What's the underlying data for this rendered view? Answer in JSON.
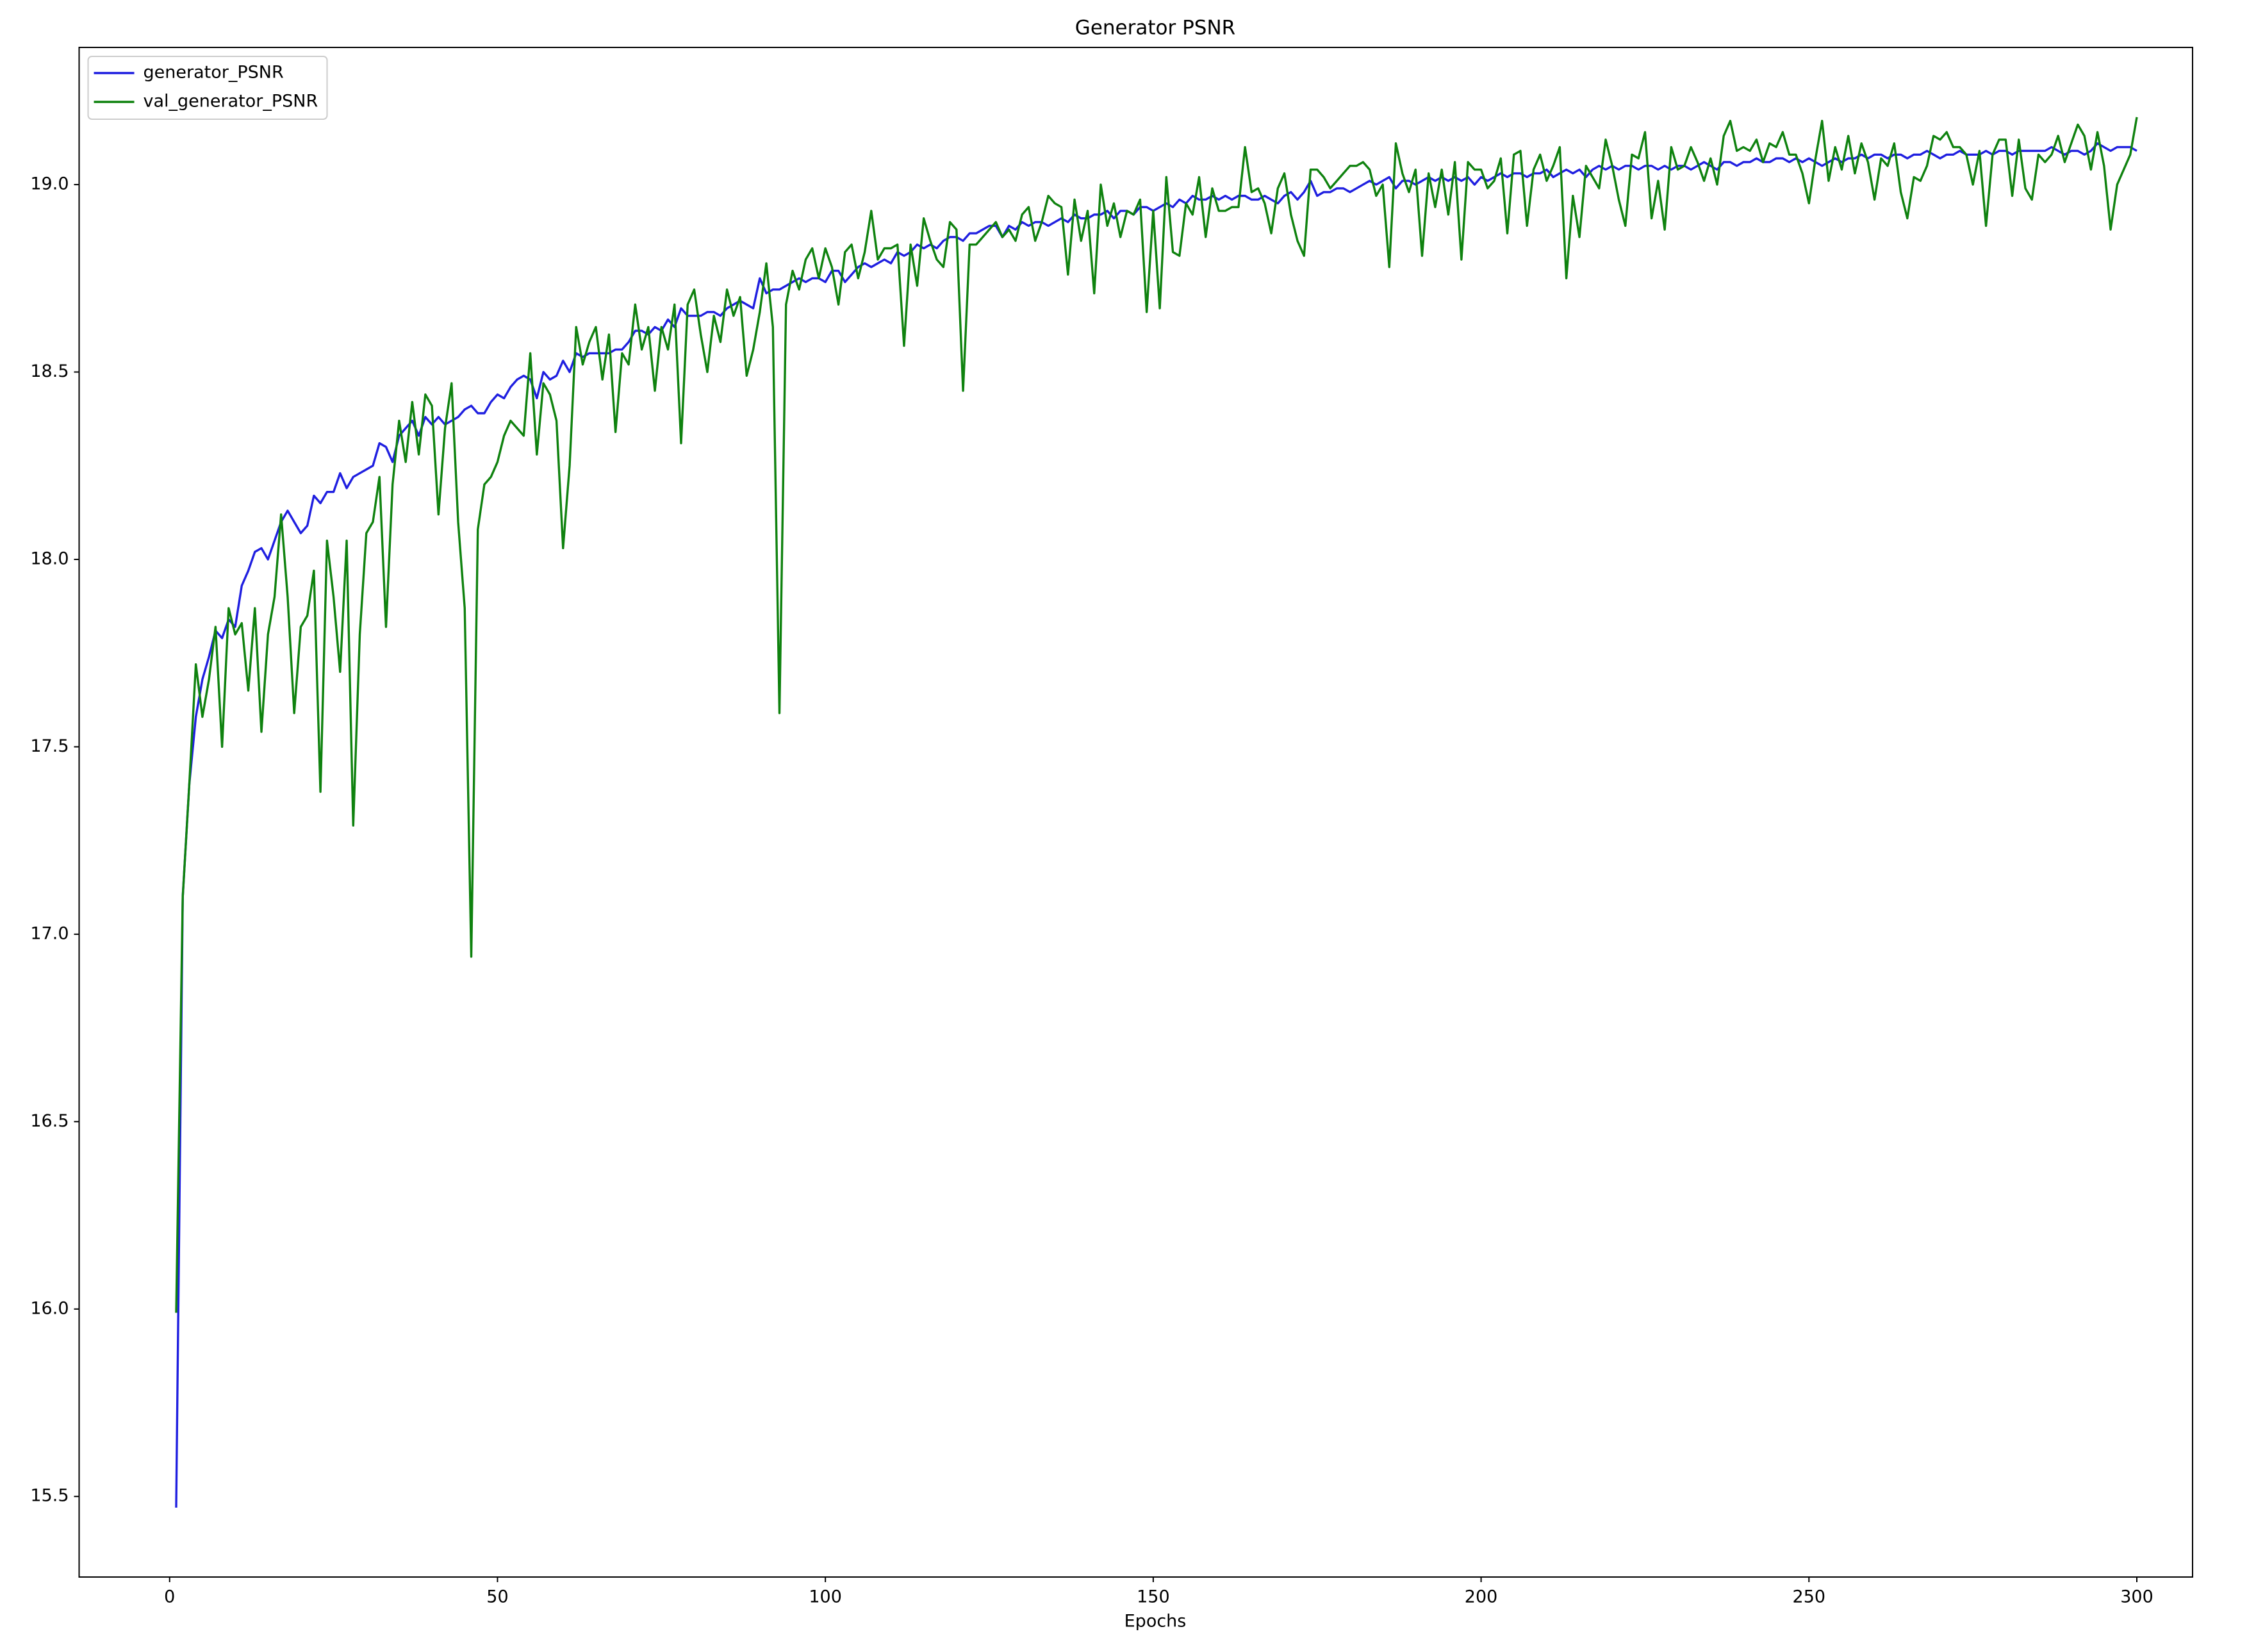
{
  "chart_data": {
    "type": "line",
    "title": "Generator PSNR",
    "xlabel": "Epochs",
    "x": [
      1,
      2,
      3,
      4,
      5,
      6,
      7,
      8,
      9,
      10,
      11,
      12,
      13,
      14,
      15,
      16,
      17,
      18,
      19,
      20,
      21,
      22,
      23,
      24,
      25,
      26,
      27,
      28,
      29,
      30,
      31,
      32,
      33,
      34,
      35,
      36,
      37,
      38,
      39,
      40,
      41,
      42,
      43,
      44,
      45,
      46,
      47,
      48,
      49,
      50,
      51,
      52,
      53,
      54,
      55,
      56,
      57,
      58,
      59,
      60,
      61,
      62,
      63,
      64,
      65,
      66,
      67,
      68,
      69,
      70,
      71,
      72,
      73,
      74,
      75,
      76,
      77,
      78,
      79,
      80,
      81,
      82,
      83,
      84,
      85,
      86,
      87,
      88,
      89,
      90,
      91,
      92,
      93,
      94,
      95,
      96,
      97,
      98,
      99,
      100,
      101,
      102,
      103,
      104,
      105,
      106,
      107,
      108,
      109,
      110,
      111,
      112,
      113,
      114,
      115,
      116,
      117,
      118,
      119,
      120,
      121,
      122,
      123,
      124,
      125,
      126,
      127,
      128,
      129,
      130,
      131,
      132,
      133,
      134,
      135,
      136,
      137,
      138,
      139,
      140,
      141,
      142,
      143,
      144,
      145,
      146,
      147,
      148,
      149,
      150,
      151,
      152,
      153,
      154,
      155,
      156,
      157,
      158,
      159,
      160,
      161,
      162,
      163,
      164,
      165,
      166,
      167,
      168,
      169,
      170,
      171,
      172,
      173,
      174,
      175,
      176,
      177,
      178,
      179,
      180,
      181,
      182,
      183,
      184,
      185,
      186,
      187,
      188,
      189,
      190,
      191,
      192,
      193,
      194,
      195,
      196,
      197,
      198,
      199,
      200,
      201,
      202,
      203,
      204,
      205,
      206,
      207,
      208,
      209,
      210,
      211,
      212,
      213,
      214,
      215,
      216,
      217,
      218,
      219,
      220,
      221,
      222,
      223,
      224,
      225,
      226,
      227,
      228,
      229,
      230,
      231,
      232,
      233,
      234,
      235,
      236,
      237,
      238,
      239,
      240,
      241,
      242,
      243,
      244,
      245,
      246,
      247,
      248,
      249,
      250,
      251,
      252,
      253,
      254,
      255,
      256,
      257,
      258,
      259,
      260,
      261,
      262,
      263,
      264,
      265,
      266,
      267,
      268,
      269,
      270,
      271,
      272,
      273,
      274,
      275,
      276,
      277,
      278,
      279,
      280,
      281,
      282,
      283,
      284,
      285,
      286,
      287,
      288,
      289,
      290,
      291,
      292,
      293,
      294,
      295,
      296,
      297,
      298,
      299,
      300
    ],
    "series": [
      {
        "name": "generator_PSNR",
        "color": "#1f1fe0",
        "values": [
          15.47,
          17.1,
          17.4,
          17.58,
          17.68,
          17.74,
          17.81,
          17.79,
          17.84,
          17.82,
          17.93,
          17.97,
          18.02,
          18.03,
          18.0,
          18.05,
          18.1,
          18.13,
          18.1,
          18.07,
          18.09,
          18.17,
          18.15,
          18.18,
          18.18,
          18.23,
          18.19,
          18.22,
          18.23,
          18.24,
          18.25,
          18.31,
          18.3,
          18.26,
          18.33,
          18.35,
          18.37,
          18.33,
          18.38,
          18.36,
          18.38,
          18.36,
          18.37,
          18.38,
          18.4,
          18.41,
          18.39,
          18.39,
          18.42,
          18.44,
          18.43,
          18.46,
          18.48,
          18.49,
          18.48,
          18.43,
          18.5,
          18.48,
          18.49,
          18.53,
          18.5,
          18.55,
          18.54,
          18.55,
          18.55,
          18.55,
          18.55,
          18.56,
          18.56,
          18.58,
          18.61,
          18.61,
          18.6,
          18.62,
          18.61,
          18.64,
          18.62,
          18.67,
          18.65,
          18.65,
          18.65,
          18.66,
          18.66,
          18.65,
          18.67,
          18.68,
          18.69,
          18.68,
          18.67,
          18.75,
          18.71,
          18.72,
          18.72,
          18.73,
          18.74,
          18.75,
          18.74,
          18.75,
          18.75,
          18.74,
          18.77,
          18.77,
          18.74,
          18.76,
          18.78,
          18.79,
          18.78,
          18.79,
          18.8,
          18.79,
          18.82,
          18.81,
          18.82,
          18.84,
          18.83,
          18.84,
          18.83,
          18.85,
          18.86,
          18.86,
          18.85,
          18.87,
          18.87,
          18.88,
          18.89,
          18.89,
          18.86,
          18.89,
          18.88,
          18.9,
          18.89,
          18.9,
          18.9,
          18.89,
          18.9,
          18.91,
          18.9,
          18.92,
          18.91,
          18.91,
          18.92,
          18.92,
          18.93,
          18.91,
          18.93,
          18.93,
          18.92,
          18.94,
          18.94,
          18.93,
          18.94,
          18.95,
          18.94,
          18.96,
          18.95,
          18.97,
          18.96,
          18.96,
          18.97,
          18.96,
          18.97,
          18.96,
          18.97,
          18.97,
          18.96,
          18.96,
          18.97,
          18.96,
          18.95,
          18.97,
          18.98,
          18.96,
          18.98,
          19.01,
          18.97,
          18.98,
          18.98,
          18.99,
          18.99,
          18.98,
          18.99,
          19.0,
          19.01,
          19.0,
          19.01,
          19.02,
          18.99,
          19.01,
          19.01,
          19.0,
          19.01,
          19.02,
          19.01,
          19.02,
          19.01,
          19.02,
          19.01,
          19.02,
          19.0,
          19.02,
          19.01,
          19.02,
          19.03,
          19.02,
          19.03,
          19.03,
          19.02,
          19.03,
          19.03,
          19.04,
          19.02,
          19.03,
          19.04,
          19.03,
          19.04,
          19.02,
          19.04,
          19.05,
          19.04,
          19.05,
          19.04,
          19.05,
          19.05,
          19.04,
          19.05,
          19.05,
          19.04,
          19.05,
          19.04,
          19.05,
          19.05,
          19.04,
          19.05,
          19.06,
          19.05,
          19.04,
          19.06,
          19.06,
          19.05,
          19.06,
          19.06,
          19.07,
          19.06,
          19.06,
          19.07,
          19.07,
          19.06,
          19.07,
          19.06,
          19.07,
          19.06,
          19.05,
          19.06,
          19.07,
          19.06,
          19.07,
          19.07,
          19.08,
          19.07,
          19.08,
          19.08,
          19.07,
          19.08,
          19.08,
          19.07,
          19.08,
          19.08,
          19.09,
          19.08,
          19.07,
          19.08,
          19.08,
          19.09,
          19.08,
          19.08,
          19.08,
          19.09,
          19.08,
          19.09,
          19.09,
          19.08,
          19.09,
          19.09,
          19.09,
          19.09,
          19.09,
          19.1,
          19.09,
          19.08,
          19.09,
          19.09,
          19.08,
          19.09,
          19.11,
          19.1,
          19.09,
          19.1,
          19.1,
          19.1,
          19.09
        ]
      },
      {
        "name": "val_generator_PSNR",
        "color": "#0f820f",
        "values": [
          15.99,
          17.1,
          17.4,
          17.72,
          17.58,
          17.68,
          17.82,
          17.5,
          17.87,
          17.8,
          17.83,
          17.65,
          17.87,
          17.54,
          17.8,
          17.9,
          18.12,
          17.9,
          17.59,
          17.82,
          17.85,
          17.97,
          17.38,
          18.05,
          17.9,
          17.7,
          18.05,
          17.29,
          17.8,
          18.07,
          18.1,
          18.22,
          17.82,
          18.2,
          18.37,
          18.26,
          18.42,
          18.28,
          18.44,
          18.41,
          18.12,
          18.35,
          18.47,
          18.1,
          17.87,
          16.94,
          18.08,
          18.2,
          18.22,
          18.26,
          18.33,
          18.37,
          18.35,
          18.33,
          18.55,
          18.28,
          18.47,
          18.44,
          18.37,
          18.03,
          18.25,
          18.62,
          18.52,
          18.58,
          18.62,
          18.48,
          18.6,
          18.34,
          18.55,
          18.52,
          18.68,
          18.56,
          18.62,
          18.45,
          18.62,
          18.56,
          18.68,
          18.31,
          18.68,
          18.72,
          18.6,
          18.5,
          18.65,
          18.58,
          18.72,
          18.65,
          18.7,
          18.49,
          18.56,
          18.66,
          18.79,
          18.62,
          17.59,
          18.68,
          18.77,
          18.72,
          18.8,
          18.83,
          18.75,
          18.83,
          18.78,
          18.68,
          18.82,
          18.84,
          18.75,
          18.82,
          18.93,
          18.8,
          18.83,
          18.83,
          18.84,
          18.57,
          18.84,
          18.73,
          18.91,
          18.85,
          18.8,
          18.78,
          18.9,
          18.88,
          18.45,
          18.84,
          18.84,
          18.86,
          18.88,
          18.9,
          18.86,
          18.88,
          18.85,
          18.92,
          18.94,
          18.85,
          18.9,
          18.97,
          18.95,
          18.94,
          18.76,
          18.96,
          18.85,
          18.93,
          18.71,
          19.0,
          18.89,
          18.95,
          18.86,
          18.93,
          18.92,
          18.96,
          18.66,
          18.93,
          18.67,
          19.02,
          18.82,
          18.81,
          18.95,
          18.92,
          19.02,
          18.86,
          18.99,
          18.93,
          18.93,
          18.94,
          18.94,
          19.1,
          18.98,
          18.99,
          18.95,
          18.87,
          18.99,
          19.03,
          18.92,
          18.85,
          18.81,
          19.04,
          19.04,
          19.02,
          18.99,
          19.01,
          19.03,
          19.05,
          19.05,
          19.06,
          19.04,
          18.97,
          19.0,
          18.78,
          19.11,
          19.03,
          18.98,
          19.04,
          18.81,
          19.03,
          18.94,
          19.04,
          18.92,
          19.06,
          18.8,
          19.06,
          19.04,
          19.04,
          18.99,
          19.01,
          19.07,
          18.87,
          19.08,
          19.09,
          18.89,
          19.04,
          19.08,
          19.01,
          19.05,
          19.1,
          18.75,
          18.97,
          18.86,
          19.05,
          19.02,
          18.99,
          19.12,
          19.05,
          18.96,
          18.89,
          19.08,
          19.07,
          19.14,
          18.91,
          19.01,
          18.88,
          19.1,
          19.04,
          19.05,
          19.1,
          19.06,
          19.01,
          19.07,
          19.0,
          19.13,
          19.17,
          19.09,
          19.1,
          19.09,
          19.12,
          19.06,
          19.11,
          19.1,
          19.14,
          19.08,
          19.08,
          19.03,
          18.95,
          19.07,
          19.17,
          19.01,
          19.1,
          19.04,
          19.13,
          19.03,
          19.11,
          19.06,
          18.96,
          19.07,
          19.05,
          19.11,
          18.98,
          18.91,
          19.02,
          19.01,
          19.05,
          19.13,
          19.12,
          19.14,
          19.1,
          19.1,
          19.08,
          19.0,
          19.09,
          18.89,
          19.08,
          19.12,
          19.12,
          18.97,
          19.12,
          18.99,
          18.96,
          19.08,
          19.06,
          19.08,
          19.13,
          19.06,
          19.11,
          19.16,
          19.13,
          19.04,
          19.14,
          19.05,
          18.88,
          19.0,
          19.04,
          19.08,
          19.18
        ]
      }
    ],
    "xlim": [
      -13.8,
      308.5
    ],
    "ylim": [
      15.285,
      19.366
    ],
    "xticks": [
      0,
      50,
      100,
      150,
      200,
      250,
      300
    ],
    "yticks": [
      15.5,
      {
        "value": 16,
        "label": "16.0"
      },
      16.5,
      {
        "value": 17,
        "label": "17.0"
      },
      17.5,
      {
        "value": 18,
        "label": "18.0"
      },
      18.5,
      {
        "value": 19,
        "label": "19.0"
      }
    ],
    "grid": false,
    "legend": "upper left"
  }
}
